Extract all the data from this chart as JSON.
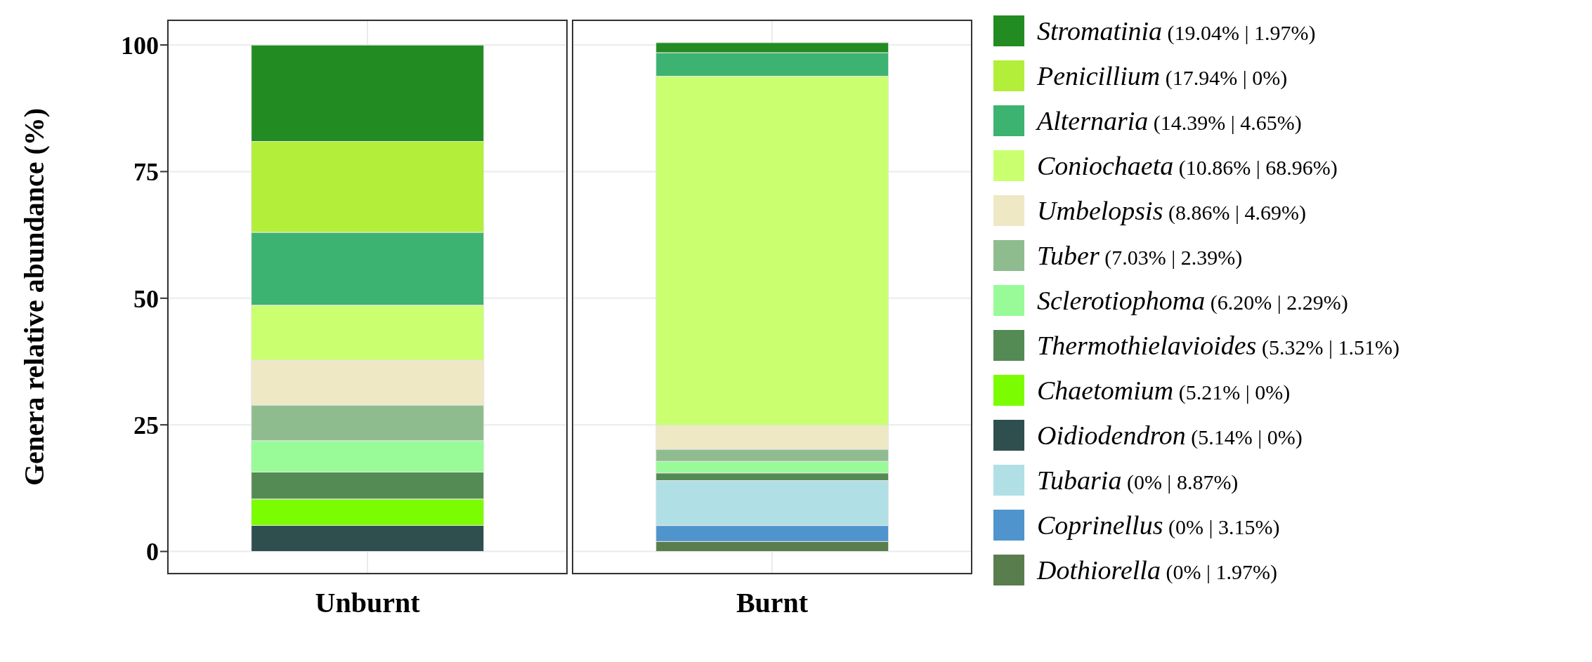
{
  "chart_data": {
    "type": "bar",
    "stacked": true,
    "ylabel": "Genera relative abundance (%)",
    "categories": [
      "Unburnt",
      "Burnt"
    ],
    "ylim": [
      -4.5,
      105
    ],
    "yticks": [
      0,
      25,
      50,
      75,
      100
    ],
    "grid": true,
    "legend": "right",
    "series": [
      {
        "name": "Dothiorella (0% | 1.97%)",
        "color": "#5a7d4d",
        "values": [
          0,
          1.97
        ]
      },
      {
        "name": "Coprinellus (0% | 3.15%)",
        "color": "#4f94cd",
        "values": [
          0,
          3.15
        ]
      },
      {
        "name": "Tubaria (0% | 8.87%)",
        "color": "#b0e0e6",
        "values": [
          0,
          8.87
        ]
      },
      {
        "name": "Oidiodendron (5.14% | 0%)",
        "color": "#2f4f4f",
        "values": [
          5.14,
          0
        ]
      },
      {
        "name": "Chaetomium (5.21% | 0%)",
        "color": "#7cfc00",
        "values": [
          5.21,
          0
        ]
      },
      {
        "name": "Thermothielavioides (5.32% | 1.51%)",
        "color": "#548b54",
        "values": [
          5.32,
          1.51
        ]
      },
      {
        "name": "Sclerotiophoma (6.20% | 2.29%)",
        "color": "#98fb98",
        "values": [
          6.2,
          2.29
        ]
      },
      {
        "name": "Tuber (7.03% | 2.39%)",
        "color": "#8fbc8f",
        "values": [
          7.03,
          2.39
        ]
      },
      {
        "name": "Umbelopsis (8.86% | 4.69%)",
        "color": "#eee8c5",
        "values": [
          8.86,
          4.69
        ]
      },
      {
        "name": "Coniochaeta (10.86% | 68.96%)",
        "color": "#caff70",
        "values": [
          10.86,
          68.96
        ]
      },
      {
        "name": "Alternaria (14.39% | 4.65%)",
        "color": "#3cb371",
        "values": [
          14.39,
          4.65
        ]
      },
      {
        "name": "Penicillium (17.94% | 0%)",
        "color": "#b3ee3a",
        "values": [
          17.94,
          0
        ]
      },
      {
        "name": "Stromatinia (19.04% | 1.97%)",
        "color": "#228b22",
        "values": [
          19.04,
          1.97
        ]
      }
    ]
  }
}
